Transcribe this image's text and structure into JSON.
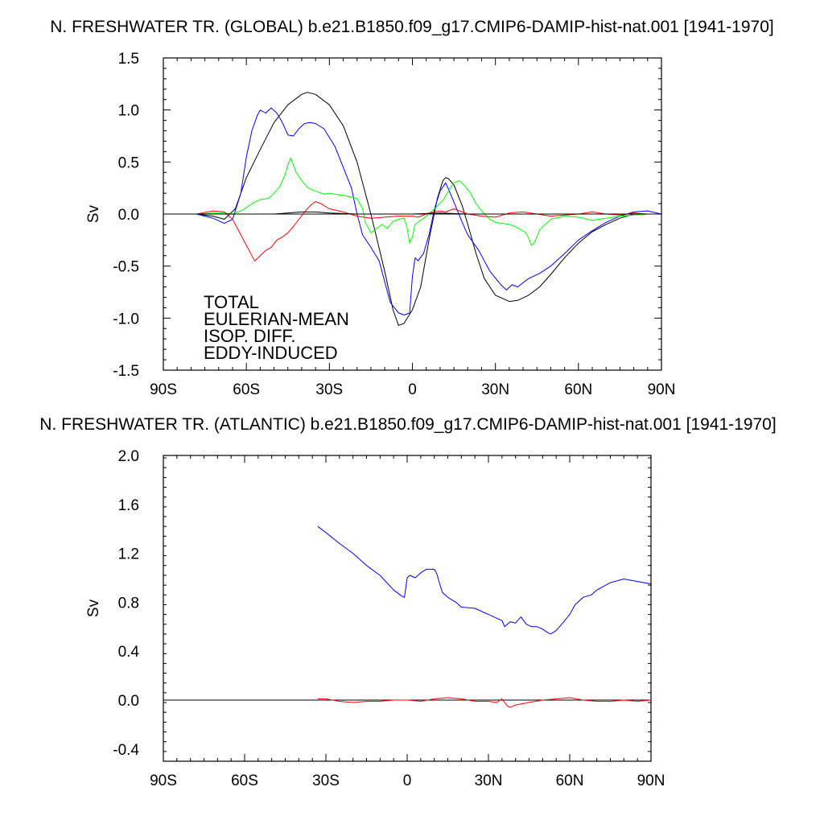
{
  "chart_data": [
    {
      "type": "line",
      "title": "N. FRESHWATER TR. (GLOBAL) b.e21.B1850.f09_g17.CMIP6-DAMIP-hist-nat.001 [1941-1970]",
      "xlabel": "",
      "ylabel": "Sv",
      "xlim": [
        -90,
        90
      ],
      "ylim": [
        -1.5,
        1.5
      ],
      "xticks": [
        -90,
        -60,
        -30,
        0,
        30,
        60,
        90
      ],
      "xtick_labels": [
        "90S",
        "60S",
        "30S",
        "0",
        "30N",
        "60N",
        "90N"
      ],
      "yticks": [
        -1.5,
        -1.0,
        -0.5,
        0.0,
        0.5,
        1.0,
        1.5
      ],
      "ytick_labels": [
        "-1.5",
        "-1.0",
        "-0.5",
        "0.0",
        "0.5",
        "1.0",
        "1.5"
      ],
      "grid": false,
      "legend": "bottom-left",
      "zero_line": true,
      "series": [
        {
          "name": "TOTAL",
          "color": "#000000",
          "x": [
            -78,
            -72,
            -68,
            -64,
            -60,
            -55,
            -50,
            -45,
            -40,
            -38,
            -35,
            -30,
            -25,
            -20,
            -15,
            -10,
            -7,
            -5,
            -3,
            0,
            3,
            6,
            9,
            11,
            12,
            13,
            15,
            18,
            20,
            23,
            26,
            30,
            35,
            38,
            42,
            46,
            50,
            55,
            60,
            65,
            70,
            75,
            80,
            85,
            90
          ],
          "y": [
            0.0,
            -0.02,
            -0.05,
            0.05,
            0.35,
            0.62,
            0.88,
            1.05,
            1.15,
            1.17,
            1.15,
            1.05,
            0.85,
            0.5,
            0.0,
            -0.55,
            -0.92,
            -1.07,
            -1.05,
            -0.92,
            -0.7,
            -0.25,
            0.15,
            0.32,
            0.35,
            0.34,
            0.28,
            0.08,
            -0.1,
            -0.38,
            -0.62,
            -0.78,
            -0.84,
            -0.83,
            -0.78,
            -0.7,
            -0.58,
            -0.42,
            -0.28,
            -0.17,
            -0.1,
            -0.04,
            0.0,
            0.0,
            0.0
          ]
        },
        {
          "name": "EULERIAN-MEAN",
          "color": "#0000ff",
          "x": [
            -78,
            -72,
            -68,
            -65,
            -62,
            -60,
            -58,
            -56,
            -55,
            -53,
            -51,
            -49,
            -47,
            -45,
            -43,
            -41,
            -39,
            -37,
            -35,
            -32,
            -28,
            -25,
            -22,
            -20,
            -18,
            -15,
            -12,
            -10,
            -8,
            -5,
            -3,
            -1,
            0,
            1,
            2,
            4,
            6,
            8,
            10,
            12,
            14,
            16,
            18,
            20,
            24,
            28,
            32,
            34,
            36,
            38,
            42,
            46,
            50,
            55,
            60,
            65,
            70,
            75,
            80,
            85,
            90
          ],
          "y": [
            0.0,
            -0.04,
            -0.09,
            -0.05,
            0.2,
            0.55,
            0.8,
            0.95,
            1.0,
            0.97,
            1.02,
            0.97,
            0.88,
            0.76,
            0.75,
            0.82,
            0.87,
            0.88,
            0.87,
            0.82,
            0.65,
            0.45,
            0.25,
            0.0,
            -0.2,
            -0.32,
            -0.45,
            -0.65,
            -0.85,
            -0.95,
            -0.97,
            -0.95,
            -0.6,
            -0.42,
            -0.45,
            -0.38,
            -0.2,
            0.05,
            0.22,
            0.3,
            0.18,
            0.05,
            -0.08,
            -0.2,
            -0.35,
            -0.55,
            -0.68,
            -0.73,
            -0.68,
            -0.7,
            -0.62,
            -0.57,
            -0.5,
            -0.38,
            -0.25,
            -0.16,
            -0.08,
            -0.02,
            0.02,
            0.03,
            0.0
          ]
        },
        {
          "name": "ISOP. DIFF.",
          "color": "#00ff00",
          "x": [
            -78,
            -72,
            -68,
            -65,
            -62,
            -60,
            -58,
            -55,
            -52,
            -50,
            -48,
            -46,
            -45,
            -44,
            -42,
            -40,
            -38,
            -36,
            -34,
            -32,
            -30,
            -25,
            -20,
            -18,
            -17,
            -15,
            -13,
            -11,
            -9,
            -7,
            -5,
            -3,
            -2,
            -1,
            0,
            1,
            3,
            5,
            8,
            11,
            13,
            15,
            17,
            19,
            21,
            23,
            25,
            28,
            30,
            35,
            38,
            41,
            42,
            43,
            44,
            46,
            50,
            55,
            60,
            65,
            70,
            75,
            80,
            85,
            90
          ],
          "y": [
            0.0,
            0.01,
            0.01,
            0.0,
            0.03,
            0.06,
            0.1,
            0.14,
            0.15,
            0.2,
            0.26,
            0.38,
            0.47,
            0.54,
            0.4,
            0.32,
            0.26,
            0.23,
            0.21,
            0.19,
            0.2,
            0.18,
            0.15,
            0.05,
            -0.08,
            -0.18,
            -0.14,
            -0.1,
            -0.14,
            -0.07,
            -0.05,
            -0.04,
            -0.12,
            -0.28,
            -0.22,
            -0.1,
            -0.06,
            -0.02,
            0.05,
            0.13,
            0.22,
            0.3,
            0.32,
            0.27,
            0.2,
            0.1,
            0.03,
            -0.05,
            -0.08,
            -0.1,
            -0.13,
            -0.18,
            -0.23,
            -0.3,
            -0.28,
            -0.15,
            -0.05,
            -0.02,
            -0.03,
            -0.06,
            -0.04,
            -0.02,
            -0.01,
            0.0,
            0.0
          ]
        },
        {
          "name": "EDDY-INDUCED",
          "color": "#ff0000",
          "x": [
            -78,
            -72,
            -68,
            -65,
            -63,
            -61,
            -59,
            -57,
            -55,
            -53,
            -51,
            -49,
            -47,
            -45,
            -43,
            -41,
            -39,
            -37,
            -35,
            -33,
            -30,
            -25,
            -20,
            -15,
            -10,
            -5,
            0,
            2,
            4,
            6,
            8,
            10,
            12,
            15,
            18,
            20,
            25,
            30,
            35,
            40,
            45,
            50,
            55,
            60,
            65,
            70,
            75,
            80,
            85,
            90
          ],
          "y": [
            0.0,
            0.03,
            0.02,
            -0.05,
            -0.15,
            -0.25,
            -0.35,
            -0.45,
            -0.4,
            -0.35,
            -0.32,
            -0.25,
            -0.22,
            -0.18,
            -0.12,
            -0.05,
            0.02,
            0.08,
            0.12,
            0.1,
            0.05,
            0.02,
            -0.02,
            -0.04,
            -0.03,
            -0.02,
            -0.02,
            -0.03,
            -0.01,
            0.01,
            0.02,
            0.03,
            0.02,
            0.05,
            0.02,
            0.0,
            -0.02,
            -0.03,
            0.01,
            0.02,
            0.0,
            -0.02,
            -0.01,
            0.0,
            0.02,
            0.0,
            -0.01,
            0.01,
            0.0,
            0.0
          ]
        },
        {
          "name": "",
          "color": "#000000",
          "x": [
            -78,
            -65,
            -50,
            -40,
            -35,
            -30,
            -20,
            -10,
            0,
            10,
            20,
            30,
            40,
            50,
            60,
            70,
            80,
            90
          ],
          "y": [
            0.0,
            0.0,
            0.0,
            0.02,
            0.02,
            0.01,
            0.0,
            0.0,
            0.0,
            0.01,
            0.0,
            0.0,
            0.0,
            0.0,
            0.0,
            0.0,
            0.0,
            0.0
          ]
        }
      ],
      "legend_entries": [
        {
          "label": "TOTAL",
          "color": "#000000"
        },
        {
          "label": "EULERIAN-MEAN",
          "color": "#0000ff"
        },
        {
          "label": "ISOP. DIFF.",
          "color": "#00ff00"
        },
        {
          "label": "EDDY-INDUCED",
          "color": "#ff0000"
        }
      ]
    },
    {
      "type": "line",
      "title": "N. FRESHWATER TR. (ATLANTIC) b.e21.B1850.f09_g17.CMIP6-DAMIP-hist-nat.001 [1941-1970]",
      "xlabel": "",
      "ylabel": "Sv",
      "xlim": [
        -90,
        90
      ],
      "ylim": [
        -0.5,
        2.0
      ],
      "xticks": [
        -90,
        -60,
        -30,
        0,
        30,
        60,
        90
      ],
      "xtick_labels": [
        "90S",
        "60S",
        "30S",
        "0",
        "30N",
        "60N",
        "90N"
      ],
      "yticks": [
        -0.4,
        0.0,
        0.4,
        0.8,
        1.2,
        1.6,
        2.0
      ],
      "ytick_labels": [
        "-0.4",
        "0.0",
        "0.4",
        "0.8",
        "1.2",
        "1.6",
        "2.0"
      ],
      "grid": false,
      "zero_line": true,
      "series": [
        {
          "name": "",
          "color": "#0000ff",
          "x": [
            -33,
            -30,
            -25,
            -20,
            -15,
            -10,
            -5,
            -2,
            -1,
            0,
            1,
            3,
            5,
            7,
            10,
            11,
            12,
            13,
            15,
            18,
            20,
            25,
            30,
            33,
            35,
            36,
            38,
            40,
            42,
            44,
            46,
            48,
            50,
            52,
            53,
            55,
            57,
            60,
            62,
            65,
            68,
            70,
            75,
            80,
            85,
            90
          ],
          "y": [
            1.42,
            1.37,
            1.28,
            1.2,
            1.1,
            1.02,
            0.9,
            0.85,
            0.84,
            1.0,
            1.02,
            1.0,
            1.04,
            1.07,
            1.07,
            1.03,
            0.95,
            0.88,
            0.84,
            0.8,
            0.76,
            0.75,
            0.7,
            0.67,
            0.65,
            0.6,
            0.64,
            0.63,
            0.68,
            0.62,
            0.6,
            0.6,
            0.58,
            0.55,
            0.54,
            0.57,
            0.62,
            0.7,
            0.78,
            0.84,
            0.86,
            0.9,
            0.96,
            0.99,
            0.97,
            0.95
          ]
        },
        {
          "name": "",
          "color": "#ff0000",
          "x": [
            -33,
            -30,
            -25,
            -20,
            -15,
            -10,
            -5,
            0,
            5,
            10,
            15,
            20,
            25,
            30,
            33,
            35,
            36,
            37,
            38,
            40,
            45,
            50,
            55,
            60,
            65,
            70,
            75,
            80,
            85,
            90
          ],
          "y": [
            0.01,
            0.01,
            -0.01,
            -0.02,
            -0.01,
            -0.01,
            0.0,
            0.0,
            -0.01,
            0.01,
            0.02,
            0.01,
            -0.01,
            -0.01,
            -0.02,
            0.01,
            -0.02,
            -0.05,
            -0.06,
            -0.04,
            -0.02,
            0.0,
            0.01,
            0.02,
            0.0,
            -0.01,
            -0.01,
            0.0,
            -0.01,
            0.0
          ]
        }
      ]
    }
  ]
}
